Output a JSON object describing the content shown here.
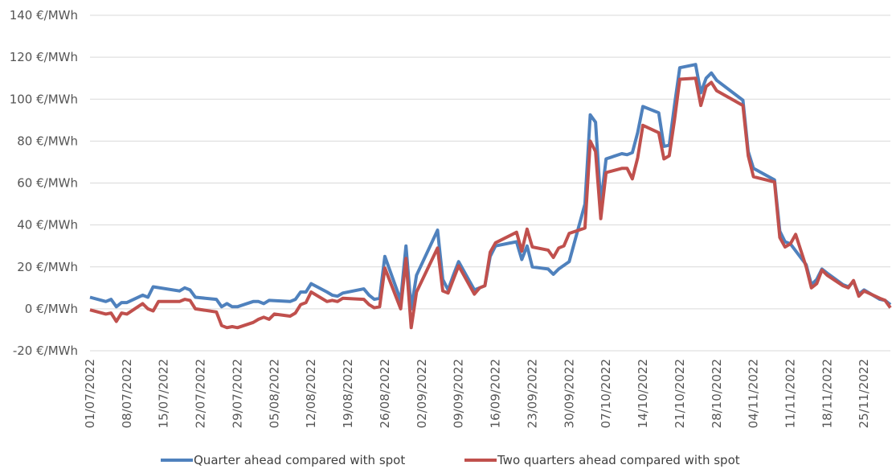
{
  "chart_data": {
    "type": "line",
    "ylim": [
      -20,
      140
    ],
    "y_ticks": [
      140,
      120,
      100,
      80,
      60,
      40,
      20,
      0,
      -20
    ],
    "y_unit": "€/MWh",
    "y_tick_labels": [
      "140 €/MWh",
      "120 €/MWh",
      "100 €/MWh",
      "80 €/MWh",
      "60 €/MWh",
      "40 €/MWh",
      "20 €/MWh",
      "0 €/MWh",
      "-20 €/MWh"
    ],
    "x_tick_labels": [
      "01/07/2022",
      "08/07/2022",
      "15/07/2022",
      "22/07/2022",
      "29/07/2022",
      "05/08/2022",
      "12/08/2022",
      "19/08/2022",
      "26/08/2022",
      "02/09/2022",
      "09/09/2022",
      "16/09/2022",
      "23/09/2022",
      "30/09/2022",
      "07/10/2022",
      "14/10/2022",
      "21/10/2022",
      "28/10/2022",
      "04/11/2022",
      "11/11/2022",
      "18/11/2022",
      "25/11/2022"
    ],
    "x_range": [
      "01/07/2022",
      "30/11/2022"
    ],
    "grid": "horizontal",
    "legend_position": "bottom",
    "series": [
      {
        "name": "Quarter ahead compared with spot",
        "color": "#4f81bd",
        "points": [
          [
            "01/07/2022",
            5.5
          ],
          [
            "04/07/2022",
            3.5
          ],
          [
            "05/07/2022",
            4.5
          ],
          [
            "06/07/2022",
            1
          ],
          [
            "07/07/2022",
            3
          ],
          [
            "08/07/2022",
            3
          ],
          [
            "11/07/2022",
            6.5
          ],
          [
            "12/07/2022",
            5.5
          ],
          [
            "13/07/2022",
            10.5
          ],
          [
            "18/07/2022",
            8.5
          ],
          [
            "19/07/2022",
            10
          ],
          [
            "20/07/2022",
            9
          ],
          [
            "21/07/2022",
            5.5
          ],
          [
            "25/07/2022",
            4.5
          ],
          [
            "26/07/2022",
            1
          ],
          [
            "27/07/2022",
            2.5
          ],
          [
            "28/07/2022",
            1
          ],
          [
            "29/07/2022",
            1
          ],
          [
            "01/08/2022",
            3.5
          ],
          [
            "02/08/2022",
            3.5
          ],
          [
            "03/08/2022",
            2.5
          ],
          [
            "04/08/2022",
            4
          ],
          [
            "08/08/2022",
            3.5
          ],
          [
            "09/08/2022",
            4.5
          ],
          [
            "10/08/2022",
            8
          ],
          [
            "11/08/2022",
            8
          ],
          [
            "12/08/2022",
            12
          ],
          [
            "15/08/2022",
            8
          ],
          [
            "16/08/2022",
            6.5
          ],
          [
            "17/08/2022",
            6
          ],
          [
            "18/08/2022",
            7.5
          ],
          [
            "22/08/2022",
            9.5
          ],
          [
            "23/08/2022",
            6.5
          ],
          [
            "24/08/2022",
            4.5
          ],
          [
            "25/08/2022",
            5
          ],
          [
            "26/08/2022",
            25
          ],
          [
            "29/08/2022",
            4
          ],
          [
            "30/08/2022",
            30
          ],
          [
            "31/08/2022",
            0
          ],
          [
            "01/09/2022",
            16
          ],
          [
            "05/09/2022",
            37.5
          ],
          [
            "06/09/2022",
            14
          ],
          [
            "07/09/2022",
            9
          ],
          [
            "08/09/2022",
            16
          ],
          [
            "09/09/2022",
            22.5
          ],
          [
            "12/09/2022",
            9
          ],
          [
            "13/09/2022",
            10
          ],
          [
            "14/09/2022",
            11
          ],
          [
            "15/09/2022",
            25
          ],
          [
            "16/09/2022",
            30
          ],
          [
            "20/09/2022",
            32
          ],
          [
            "21/09/2022",
            23.5
          ],
          [
            "22/09/2022",
            30
          ],
          [
            "23/09/2022",
            20
          ],
          [
            "26/09/2022",
            19
          ],
          [
            "27/09/2022",
            16.5
          ],
          [
            "28/09/2022",
            19
          ],
          [
            "30/09/2022",
            22.5
          ],
          [
            "03/10/2022",
            50
          ],
          [
            "04/10/2022",
            92.5
          ],
          [
            "05/10/2022",
            89
          ],
          [
            "06/10/2022",
            50
          ],
          [
            "07/10/2022",
            71.5
          ],
          [
            "10/10/2022",
            74
          ],
          [
            "11/10/2022",
            73.5
          ],
          [
            "12/10/2022",
            74.5
          ],
          [
            "13/10/2022",
            84
          ],
          [
            "14/10/2022",
            96.5
          ],
          [
            "17/10/2022",
            93.5
          ],
          [
            "18/10/2022",
            77.5
          ],
          [
            "19/10/2022",
            78
          ],
          [
            "20/10/2022",
            97
          ],
          [
            "21/10/2022",
            115
          ],
          [
            "24/10/2022",
            116.5
          ],
          [
            "25/10/2022",
            103
          ],
          [
            "26/10/2022",
            110
          ],
          [
            "27/10/2022",
            112.5
          ],
          [
            "28/10/2022",
            109
          ],
          [
            "02/11/2022",
            99.5
          ],
          [
            "03/11/2022",
            75
          ],
          [
            "04/11/2022",
            67
          ],
          [
            "08/11/2022",
            61.5
          ],
          [
            "09/11/2022",
            37
          ],
          [
            "10/11/2022",
            32
          ],
          [
            "11/11/2022",
            31
          ],
          [
            "14/11/2022",
            21
          ],
          [
            "15/11/2022",
            11.5
          ],
          [
            "16/11/2022",
            14
          ],
          [
            "17/11/2022",
            19
          ],
          [
            "18/11/2022",
            17
          ],
          [
            "21/11/2022",
            11.5
          ],
          [
            "22/11/2022",
            10.5
          ],
          [
            "23/11/2022",
            13
          ],
          [
            "24/11/2022",
            7
          ],
          [
            "25/11/2022",
            9
          ],
          [
            "28/11/2022",
            4.5
          ],
          [
            "29/11/2022",
            4
          ],
          [
            "30/11/2022",
            2
          ]
        ]
      },
      {
        "name": "Two quarters ahead compared with spot",
        "color": "#c0504d",
        "points": [
          [
            "01/07/2022",
            -0.5
          ],
          [
            "04/07/2022",
            -2.5
          ],
          [
            "05/07/2022",
            -2
          ],
          [
            "06/07/2022",
            -6
          ],
          [
            "07/07/2022",
            -2
          ],
          [
            "08/07/2022",
            -2.5
          ],
          [
            "11/07/2022",
            2.5
          ],
          [
            "12/07/2022",
            0
          ],
          [
            "13/07/2022",
            -1
          ],
          [
            "14/07/2022",
            3.5
          ],
          [
            "18/07/2022",
            3.5
          ],
          [
            "19/07/2022",
            4.5
          ],
          [
            "20/07/2022",
            4
          ],
          [
            "21/07/2022",
            0
          ],
          [
            "25/07/2022",
            -1.5
          ],
          [
            "26/07/2022",
            -8
          ],
          [
            "27/07/2022",
            -9
          ],
          [
            "28/07/2022",
            -8.5
          ],
          [
            "29/07/2022",
            -9
          ],
          [
            "01/08/2022",
            -6.5
          ],
          [
            "02/08/2022",
            -5
          ],
          [
            "03/08/2022",
            -4
          ],
          [
            "04/08/2022",
            -5
          ],
          [
            "05/08/2022",
            -2.5
          ],
          [
            "08/08/2022",
            -3.5
          ],
          [
            "09/08/2022",
            -2
          ],
          [
            "10/08/2022",
            2
          ],
          [
            "11/08/2022",
            3
          ],
          [
            "12/08/2022",
            8
          ],
          [
            "15/08/2022",
            3.5
          ],
          [
            "16/08/2022",
            4
          ],
          [
            "17/08/2022",
            3.5
          ],
          [
            "18/08/2022",
            5
          ],
          [
            "22/08/2022",
            4.5
          ],
          [
            "23/08/2022",
            2
          ],
          [
            "24/08/2022",
            0.5
          ],
          [
            "25/08/2022",
            1
          ],
          [
            "26/08/2022",
            19.5
          ],
          [
            "29/08/2022",
            0
          ],
          [
            "30/08/2022",
            24
          ],
          [
            "31/08/2022",
            -9
          ],
          [
            "01/09/2022",
            8
          ],
          [
            "05/09/2022",
            29
          ],
          [
            "06/09/2022",
            8.5
          ],
          [
            "07/09/2022",
            7.5
          ],
          [
            "08/09/2022",
            14
          ],
          [
            "09/09/2022",
            20.5
          ],
          [
            "12/09/2022",
            7
          ],
          [
            "13/09/2022",
            10
          ],
          [
            "14/09/2022",
            11
          ],
          [
            "15/09/2022",
            27
          ],
          [
            "16/09/2022",
            31.5
          ],
          [
            "20/09/2022",
            36.5
          ],
          [
            "21/09/2022",
            27.5
          ],
          [
            "22/09/2022",
            38
          ],
          [
            "23/09/2022",
            29.5
          ],
          [
            "26/09/2022",
            28
          ],
          [
            "27/09/2022",
            24.5
          ],
          [
            "28/09/2022",
            29
          ],
          [
            "29/09/2022",
            30
          ],
          [
            "30/09/2022",
            36
          ],
          [
            "03/10/2022",
            38.5
          ],
          [
            "04/10/2022",
            80
          ],
          [
            "05/10/2022",
            75
          ],
          [
            "06/10/2022",
            43
          ],
          [
            "07/10/2022",
            65
          ],
          [
            "10/10/2022",
            67
          ],
          [
            "11/10/2022",
            67
          ],
          [
            "12/10/2022",
            62
          ],
          [
            "13/10/2022",
            72
          ],
          [
            "14/10/2022",
            87.5
          ],
          [
            "17/10/2022",
            84
          ],
          [
            "18/10/2022",
            71.5
          ],
          [
            "19/10/2022",
            73
          ],
          [
            "20/10/2022",
            90
          ],
          [
            "21/10/2022",
            109.5
          ],
          [
            "24/10/2022",
            110
          ],
          [
            "25/10/2022",
            97
          ],
          [
            "26/10/2022",
            106
          ],
          [
            "27/10/2022",
            108
          ],
          [
            "28/10/2022",
            104
          ],
          [
            "02/11/2022",
            97
          ],
          [
            "03/11/2022",
            73
          ],
          [
            "04/11/2022",
            63
          ],
          [
            "08/11/2022",
            60.5
          ],
          [
            "09/11/2022",
            34
          ],
          [
            "10/11/2022",
            29.5
          ],
          [
            "11/11/2022",
            31
          ],
          [
            "12/11/2022",
            35.5
          ],
          [
            "14/11/2022",
            20
          ],
          [
            "15/11/2022",
            10
          ],
          [
            "16/11/2022",
            12
          ],
          [
            "17/11/2022",
            18.5
          ],
          [
            "18/11/2022",
            16
          ],
          [
            "21/11/2022",
            11
          ],
          [
            "22/11/2022",
            10
          ],
          [
            "23/11/2022",
            13.5
          ],
          [
            "24/11/2022",
            6
          ],
          [
            "25/11/2022",
            8.5
          ],
          [
            "28/11/2022",
            5
          ],
          [
            "29/11/2022",
            4
          ],
          [
            "30/11/2022",
            0.5
          ]
        ]
      }
    ]
  }
}
